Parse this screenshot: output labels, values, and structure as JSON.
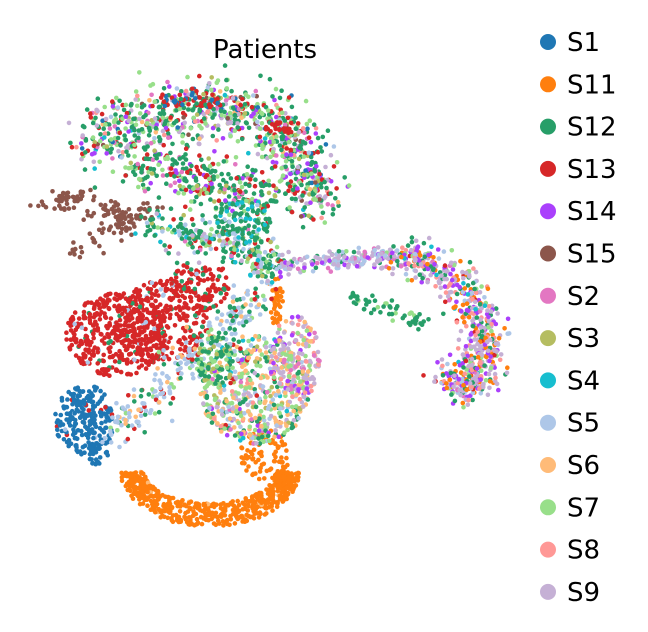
{
  "chart_data": {
    "type": "scatter",
    "title": "Patients",
    "xlabel": "",
    "ylabel": "",
    "grid": false,
    "axes_visible": false,
    "legend_position": "right",
    "point_size": "small",
    "series": [
      {
        "name": "S1",
        "color": "#1f77b4"
      },
      {
        "name": "S11",
        "color": "#ff7f0e"
      },
      {
        "name": "S12",
        "color": "#279e68"
      },
      {
        "name": "S13",
        "color": "#d62728"
      },
      {
        "name": "S14",
        "color": "#aa40fc"
      },
      {
        "name": "S15",
        "color": "#8c564b"
      },
      {
        "name": "S2",
        "color": "#e377c2"
      },
      {
        "name": "S3",
        "color": "#b5bd61"
      },
      {
        "name": "S4",
        "color": "#17becf"
      },
      {
        "name": "S5",
        "color": "#aec7e8"
      },
      {
        "name": "S6",
        "color": "#ffbb78"
      },
      {
        "name": "S7",
        "color": "#98df8a"
      },
      {
        "name": "S8",
        "color": "#ff9896"
      },
      {
        "name": "S9",
        "color": "#c5b0d5"
      }
    ]
  }
}
